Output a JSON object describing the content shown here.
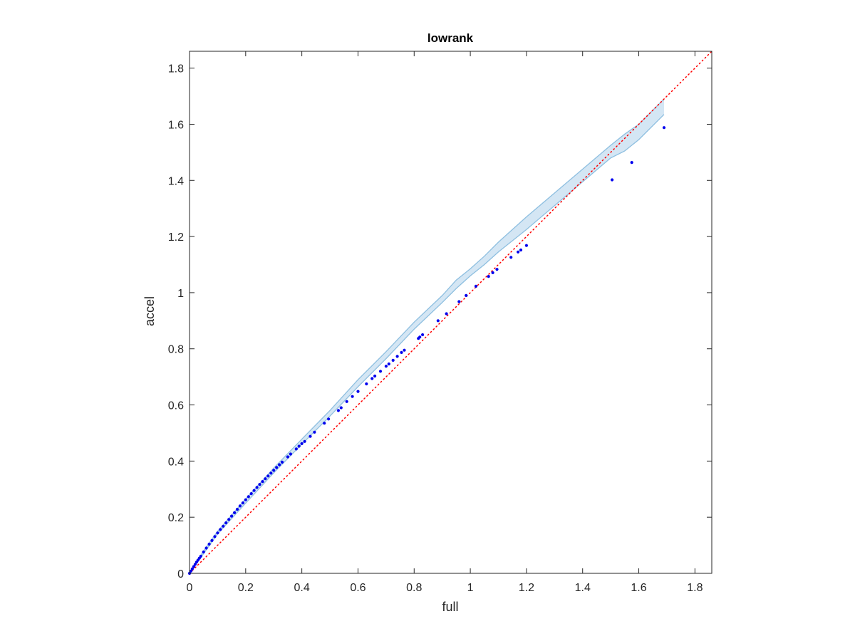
{
  "chart_data": {
    "type": "scatter",
    "title": "lowrank",
    "xlabel": "full",
    "ylabel": "accel",
    "xlim": [
      0,
      1.86
    ],
    "ylim": [
      0,
      1.86
    ],
    "xticks": [
      0,
      0.2,
      0.4,
      0.6,
      0.8,
      1,
      1.2,
      1.4,
      1.6,
      1.8
    ],
    "yticks": [
      0,
      0.2,
      0.4,
      0.6,
      0.8,
      1,
      1.2,
      1.4,
      1.6,
      1.8
    ],
    "xtick_labels": [
      "0",
      "0.2",
      "0.4",
      "0.6",
      "0.8",
      "1",
      "1.2",
      "1.4",
      "1.6",
      "1.8"
    ],
    "ytick_labels": [
      "0",
      "0.2",
      "0.4",
      "0.6",
      "0.8",
      "1",
      "1.2",
      "1.4",
      "1.6",
      "1.8"
    ],
    "grid": false,
    "box": true,
    "colors": {
      "points": "#0000ee",
      "reference_line": "#ff0000",
      "band_fill": "#d4e6f4",
      "band_edge": "#8ebfe0",
      "axes": "#262626"
    },
    "reference_line": {
      "style": "dotted",
      "x": [
        0,
        1.86
      ],
      "y": [
        0,
        1.86
      ]
    },
    "band": {
      "x": [
        0,
        0.05,
        0.1,
        0.2,
        0.3,
        0.4,
        0.5,
        0.6,
        0.7,
        0.8,
        0.9,
        0.95,
        1.0,
        1.05,
        1.1,
        1.2,
        1.3,
        1.4,
        1.5,
        1.55,
        1.6,
        1.69
      ],
      "upper": [
        0,
        0.08,
        0.15,
        0.265,
        0.375,
        0.478,
        0.58,
        0.69,
        0.79,
        0.895,
        0.99,
        1.045,
        1.085,
        1.13,
        1.18,
        1.27,
        1.355,
        1.44,
        1.525,
        1.565,
        1.6,
        1.69
      ],
      "lower": [
        0,
        0.07,
        0.14,
        0.25,
        0.358,
        0.46,
        0.56,
        0.665,
        0.765,
        0.87,
        0.965,
        1.015,
        1.06,
        1.1,
        1.145,
        1.225,
        1.31,
        1.395,
        1.48,
        1.505,
        1.545,
        1.635
      ]
    },
    "points": {
      "x": [
        0.0,
        0.005,
        0.01,
        0.015,
        0.02,
        0.025,
        0.03,
        0.035,
        0.04,
        0.05,
        0.06,
        0.07,
        0.08,
        0.09,
        0.1,
        0.11,
        0.12,
        0.13,
        0.14,
        0.15,
        0.16,
        0.17,
        0.18,
        0.19,
        0.2,
        0.21,
        0.22,
        0.23,
        0.24,
        0.25,
        0.26,
        0.27,
        0.28,
        0.29,
        0.3,
        0.31,
        0.32,
        0.33,
        0.35,
        0.36,
        0.38,
        0.39,
        0.4,
        0.41,
        0.43,
        0.445,
        0.48,
        0.495,
        0.53,
        0.54,
        0.56,
        0.58,
        0.6,
        0.63,
        0.65,
        0.66,
        0.68,
        0.7,
        0.71,
        0.725,
        0.74,
        0.755,
        0.765,
        0.815,
        0.82,
        0.83,
        0.885,
        0.915,
        0.96,
        0.985,
        1.02,
        1.065,
        1.08,
        1.095,
        1.145,
        1.17,
        1.18,
        1.2,
        1.505,
        1.575,
        1.69
      ],
      "y": [
        0.0,
        0.008,
        0.016,
        0.024,
        0.032,
        0.04,
        0.047,
        0.054,
        0.061,
        0.076,
        0.09,
        0.104,
        0.117,
        0.131,
        0.144,
        0.156,
        0.168,
        0.18,
        0.192,
        0.204,
        0.216,
        0.228,
        0.24,
        0.251,
        0.262,
        0.273,
        0.284,
        0.295,
        0.306,
        0.317,
        0.327,
        0.337,
        0.347,
        0.357,
        0.367,
        0.377,
        0.387,
        0.396,
        0.415,
        0.425,
        0.443,
        0.453,
        0.462,
        0.47,
        0.488,
        0.503,
        0.535,
        0.55,
        0.58,
        0.59,
        0.612,
        0.63,
        0.648,
        0.675,
        0.694,
        0.703,
        0.72,
        0.738,
        0.746,
        0.759,
        0.773,
        0.787,
        0.795,
        0.837,
        0.842,
        0.85,
        0.9,
        0.925,
        0.968,
        0.99,
        1.023,
        1.058,
        1.071,
        1.083,
        1.126,
        1.145,
        1.152,
        1.168,
        1.402,
        1.464,
        1.588
      ]
    }
  }
}
